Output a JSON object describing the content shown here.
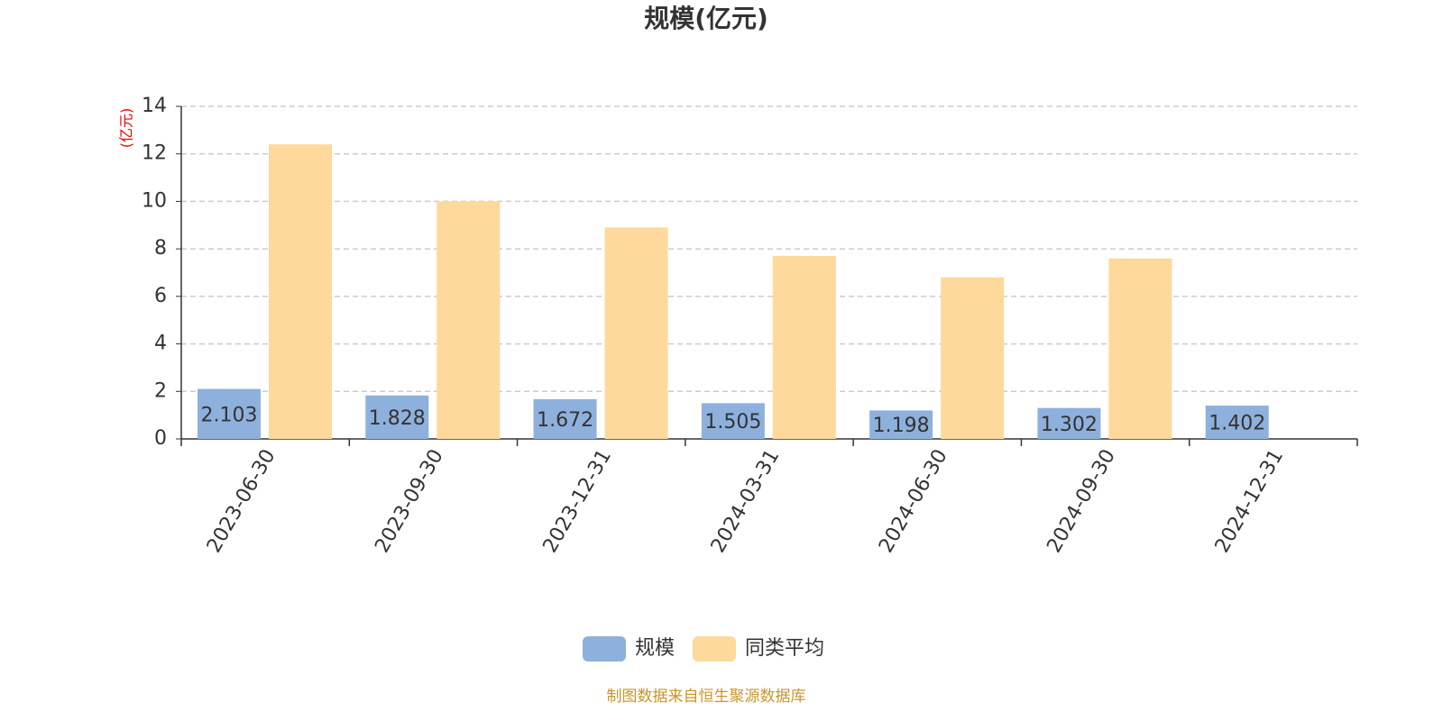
{
  "chart_data": {
    "type": "bar",
    "title": "规模(亿元)",
    "y_label": "(亿元)",
    "categories": [
      "2023-06-30",
      "2023-09-30",
      "2023-12-31",
      "2024-03-31",
      "2024-06-30",
      "2024-09-30",
      "2024-12-31"
    ],
    "series": [
      {
        "name": "规模",
        "color": "#8eb0dc",
        "values": [
          2.103,
          1.828,
          1.672,
          1.505,
          1.198,
          1.302,
          1.402
        ]
      },
      {
        "name": "同类平均",
        "color": "#fed99b",
        "values": [
          12.4,
          10.0,
          8.9,
          7.7,
          6.8,
          7.6,
          null
        ]
      }
    ],
    "ylim": [
      0,
      14
    ],
    "yticks": [
      0,
      2,
      4,
      6,
      8,
      10,
      12,
      14
    ],
    "grid": true,
    "source": "制图数据来自恒生聚源数据库"
  }
}
